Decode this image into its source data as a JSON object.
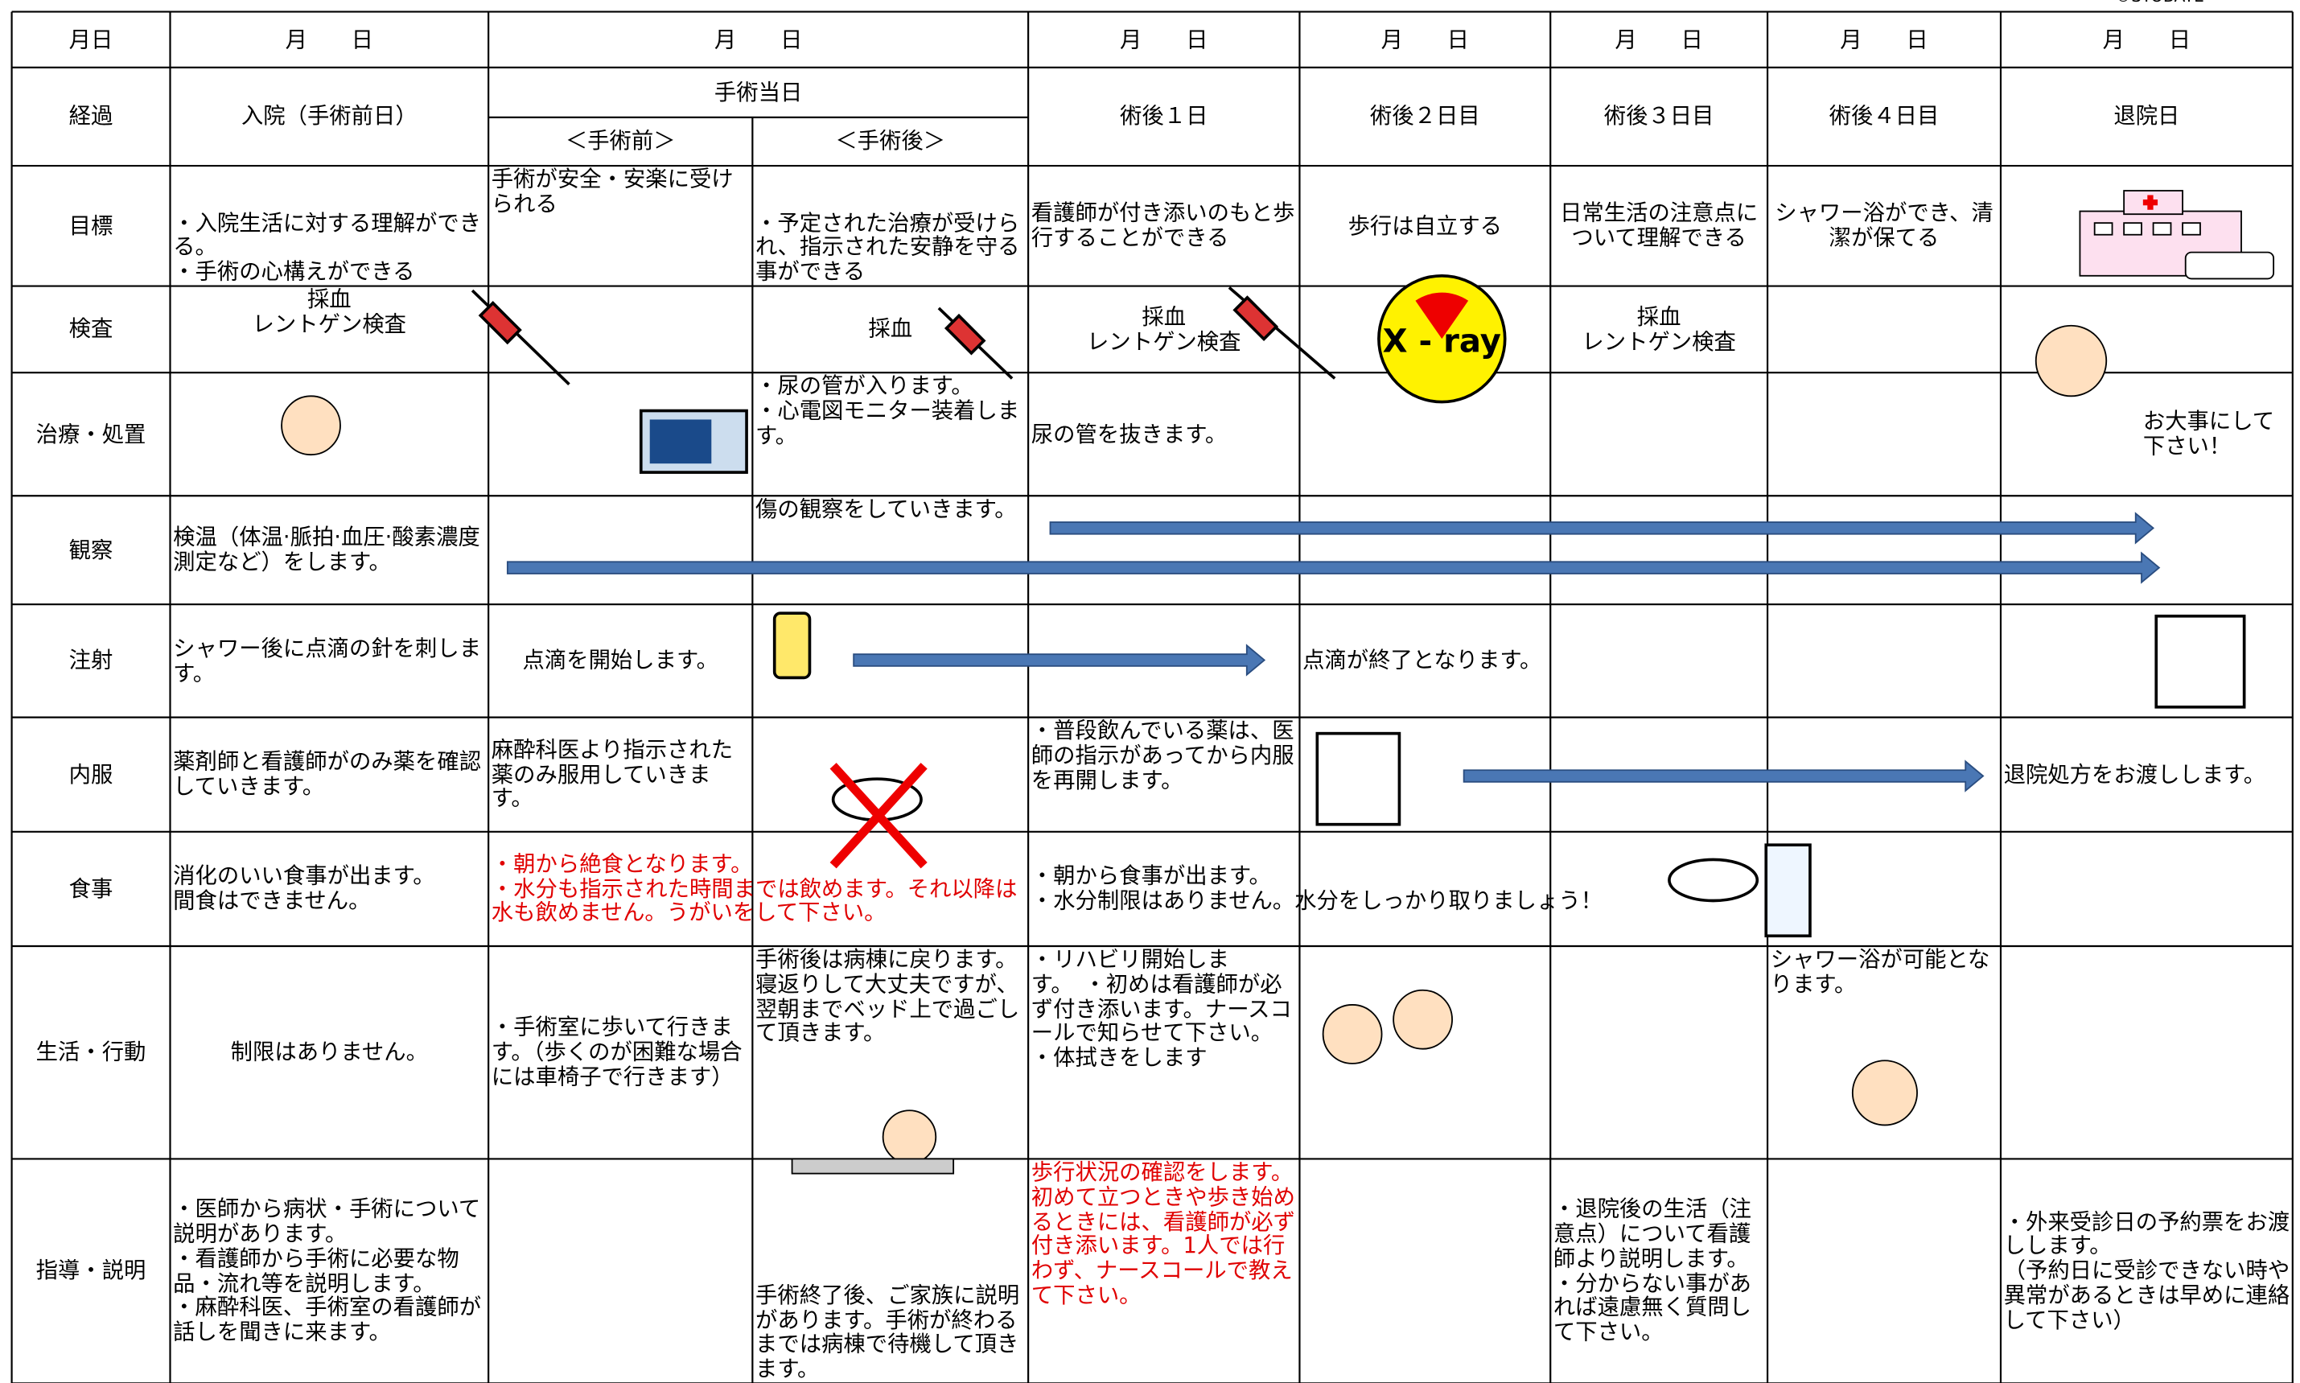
{
  "copyright": "©SYOBATE",
  "header": {
    "label": "月日",
    "dates": [
      "月　　日",
      "月　　日",
      "月　　日",
      "月　　日",
      "月　　日",
      "月　　日",
      "月　　日"
    ]
  },
  "progress": {
    "label": "経過",
    "admission": "入院（手術前日）",
    "surgery_day": "手術当日",
    "pre": "＜手術前＞",
    "post": "＜手術後＞",
    "days": [
      "術後１日",
      "術後２日目",
      "術後３日目",
      "術後４日目",
      "退院日"
    ]
  },
  "xray": "X - ray",
  "rows": [
    {
      "label": "目標",
      "cells": [
        "・入院生活に対する理解ができる。\n・手術の心構えができる",
        "手術が安全・安楽に受けられる",
        "・予定された治療が受けられ、指示された安静を守る事ができる",
        "看護師が付き添いのもと歩行することができる",
        "歩行は自立する",
        "日常生活の注意点について理解できる",
        "シャワー浴ができ、清潔が保てる"
      ]
    },
    {
      "label": "検査",
      "cells": [
        "採血\nレントゲン検査",
        "採血",
        "採血\nレントゲン検査",
        "採血\nレントゲン検査"
      ]
    },
    {
      "label": "治療・処置",
      "cells": [
        "・尿の管が入ります。\n・心電図モニター装着します。",
        "尿の管を抜きます。",
        "お大事にして下さい！"
      ]
    },
    {
      "label": "観察",
      "cells": [
        "検温（体温·脈拍·血圧·酸素濃度測定など）をします。",
        "傷の観察をしていきます。"
      ]
    },
    {
      "label": "注射",
      "cells": [
        "シャワー後に点滴の針を刺します。",
        "点滴を開始します。",
        "点滴が終了となります。"
      ]
    },
    {
      "label": "内服",
      "cells": [
        "薬剤師と看護師がのみ薬を確認していきます。",
        "麻酔科医より指示された薬のみ服用していきます。",
        "・普段飲んでいる薬は、医師の指示があってから内服を再開します。",
        "退院処方をお渡しします。"
      ]
    },
    {
      "label": "食事",
      "cells": [
        "消化のいい食事が出ます。\n間食はできません。",
        "・朝から絶食となります。\n・水分も指示された時間までは飲めます。それ以降は水も飲めません。うがいをして下さい。",
        "・朝から食事が出ます。\n・水分制限はありません。水分をしっかり取りましょう！"
      ]
    },
    {
      "label": "生活・行動",
      "cells": [
        "制限はありません。",
        "・手術室に歩いて行きます。（歩くのが困難な場合には車椅子で行きます）",
        "手術後は病棟に戻ります。寝返りして大丈夫ですが、翌朝までベッド上で過ごして頂きます。",
        "・リハビリ開始します。　・初めは看護師が必ず付き添います。ナースコールで知らせて下さい。\n・体拭きをします",
        "シャワー浴が可能となります。"
      ]
    },
    {
      "label": "指導・説明",
      "cells": [
        "・医師から病状・手術について説明があります。\n・看護師から手術に必要な物品・流れ等を説明します。\n・麻酔科医、手術室の看護師が話しを聞きに来ます。",
        "手術終了後、ご家族に説明があります。手術が終わるまでは病棟で待機して頂きます。",
        "歩行状況の確認をします。\n初めて立つときや歩き始めるときには、看護師が必ず付き添います。1人では行わず、ナースコールで教えて下さい。",
        "・退院後の生活（注意点）について看護師より説明します。\n・分からない事があれば遠慮無く質問して下さい。",
        "・外来受診日の予約票をお渡しします。\n（予約日に受診できない時や異常があるときは早めに連絡して下さい）"
      ]
    }
  ]
}
